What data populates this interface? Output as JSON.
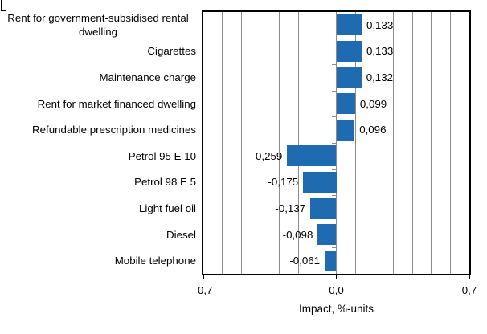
{
  "chart_data": {
    "type": "bar",
    "orientation": "horizontal",
    "title": "",
    "xlabel": "Impact, %-units",
    "ylabel": "",
    "xlim": [
      -0.7,
      0.7
    ],
    "gridline_interval": 0.1,
    "grid": true,
    "legend": false,
    "categories": [
      "Rent for government-subsidised rental\ndwelling",
      "Cigarettes",
      "Maintenance charge",
      "Rent for market financed dwelling",
      "Refundable prescription medicines",
      "Petrol 95 E 10",
      "Petrol 98 E 5",
      "Light fuel oil",
      "Diesel",
      "Mobile telephone"
    ],
    "values": [
      0.133,
      0.133,
      0.132,
      0.099,
      0.096,
      -0.259,
      -0.175,
      -0.137,
      -0.098,
      -0.061
    ],
    "value_labels": [
      "0,133",
      "0,133",
      "0,132",
      "0,099",
      "0,096",
      "-0,259",
      "-0,175",
      "-0,137",
      "-0,098",
      "-0,061"
    ],
    "x_ticks": [
      {
        "label": "-0,7",
        "fraction": 0
      },
      {
        "label": "0,0",
        "fraction": 0.5
      },
      {
        "label": "0,7",
        "fraction": 1
      }
    ],
    "colors": {
      "bar": "#1f6bb1",
      "gridline": "#8c8c8c",
      "axis": "#000000",
      "background": "#ffffff",
      "text": "#000000"
    }
  }
}
